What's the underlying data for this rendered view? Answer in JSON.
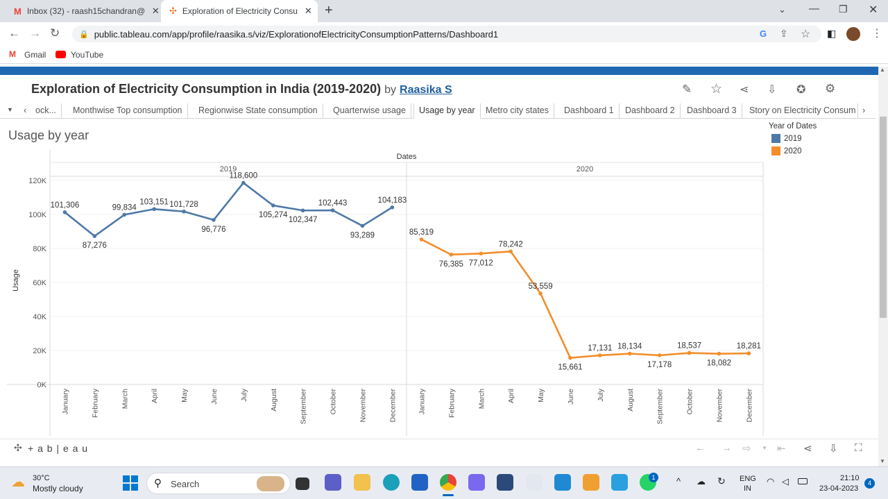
{
  "browser": {
    "tabs": [
      {
        "title": "Inbox (32) - raash15chandran@g",
        "icon": "gmail-icon"
      },
      {
        "title": "Exploration of Electricity Consum",
        "icon": "tableau-icon"
      }
    ],
    "url": "public.tableau.com/app/profile/raasika.s/viz/ExplorationofElectricityConsumptionPatterns/Dashboard1",
    "bookmarks": [
      "Gmail",
      "YouTube"
    ]
  },
  "viz": {
    "title": "Exploration of Electricity Consumption in India (2019-2020)",
    "by": "by",
    "author": "Raasika S",
    "sheet_tabs": [
      "ock...",
      "Monthwise Top consumption",
      "Regionwise State consumption",
      "Quarterwise usage",
      "Usage by year",
      "Metro city states",
      "Dashboard 1",
      "Dashboard 2",
      "Dashboard 3",
      "Story on Electricity Consum"
    ],
    "active_tab": "Usage by year",
    "sheet_title": "Usage by year",
    "legend": {
      "title": "Year of Dates",
      "items": [
        {
          "label": "2019",
          "color": "#4e79a7"
        },
        {
          "label": "2020",
          "color": "#f28e2b"
        }
      ]
    },
    "footer_brand": "+ a b | e a u"
  },
  "chart_data": {
    "type": "line",
    "column_header": "Dates",
    "panes": [
      "2019",
      "2020"
    ],
    "ylabel": "Usage",
    "ylim": [
      0,
      120000
    ],
    "yticks": [
      "0K",
      "20K",
      "40K",
      "60K",
      "80K",
      "100K",
      "120K"
    ],
    "categories": [
      "January",
      "February",
      "March",
      "April",
      "May",
      "June",
      "July",
      "August",
      "September",
      "October",
      "November",
      "December"
    ],
    "series": [
      {
        "name": "2019",
        "color": "#4e79a7",
        "values": [
          101306,
          87276,
          99834,
          103151,
          101728,
          96776,
          118600,
          105274,
          102347,
          102443,
          93289,
          104183
        ],
        "labels": [
          "101,306",
          "87,276",
          "99,834",
          "103,151",
          "101,728",
          "96,776",
          "118,600",
          "105,274",
          "102,347",
          "102,443",
          "93,289",
          "104,183"
        ]
      },
      {
        "name": "2020",
        "color": "#f28e2b",
        "values": [
          85319,
          76385,
          77012,
          78242,
          53559,
          15661,
          17131,
          18134,
          17178,
          18537,
          18082,
          18281
        ],
        "labels": [
          "85,319",
          "76,385",
          "77,012",
          "78,242",
          "53,559",
          "15,661",
          "17,131",
          "18,134",
          "17,178",
          "18,537",
          "18,082",
          "18,281"
        ]
      }
    ]
  },
  "taskbar": {
    "weather_temp": "30°C",
    "weather_desc": "Mostly cloudy",
    "search": "Search",
    "lang": "ENG",
    "region": "IN",
    "time": "21:10",
    "date": "23-04-2023",
    "notifications": "4",
    "whatsapp_badge": "1"
  }
}
